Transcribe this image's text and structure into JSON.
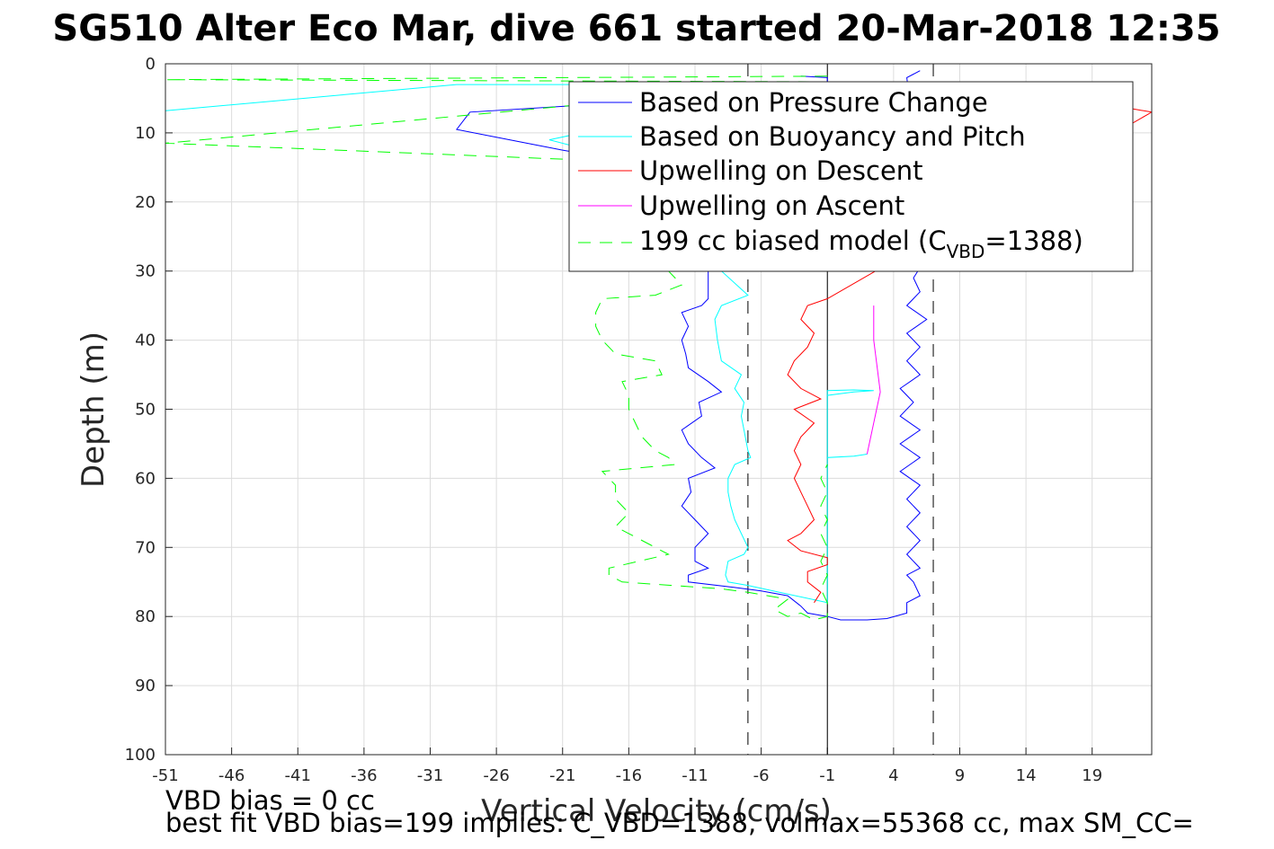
{
  "chart_data": {
    "type": "line",
    "title": "SG510 Alter Eco Mar, dive 661 started 20-Mar-2018 12:35",
    "xlabel": "Vertical Velocity (cm/s)",
    "ylabel": "Depth (m)",
    "xlim": [
      -51,
      23.5
    ],
    "ylim": [
      0,
      100
    ],
    "y_reversed": true,
    "xticks": [
      "-51",
      "-46",
      "-41",
      "-36",
      "-31",
      "-26",
      "-21",
      "-16",
      "-11",
      "-6",
      "-1",
      "4",
      "9",
      "14",
      "19"
    ],
    "yticks": [
      "0",
      "10",
      "20",
      "30",
      "40",
      "50",
      "60",
      "70",
      "80",
      "90",
      "100"
    ],
    "grid": true,
    "legend_location": "top-right",
    "colors": {
      "pressure": "#0000ff",
      "buoyancy": "#00ffff",
      "upwelling_descent": "#ff0000",
      "upwelling_ascent": "#ff00ff",
      "model": "#00ff00",
      "reference": "#000000",
      "grid": "#dcdcdc"
    },
    "legend": [
      {
        "key": "pressure",
        "text": "Based on Pressure Change",
        "style": "solid"
      },
      {
        "key": "buoyancy",
        "text": "Based on Buoyancy and Pitch",
        "style": "solid"
      },
      {
        "key": "upwelling_descent",
        "text": "Upwelling on Descent",
        "style": "solid"
      },
      {
        "key": "upwelling_ascent",
        "text": "Upwelling on Ascent",
        "style": "solid"
      },
      {
        "key": "model",
        "text_main": "199 cc biased model (C",
        "text_sub": "VBD",
        "text_end": "=1388)",
        "style": "dashed"
      }
    ],
    "reference_lines": {
      "solid_x": -1,
      "dashed_x": [
        -7,
        7
      ]
    },
    "series": [
      {
        "key": "pressure",
        "name": "Based on Pressure Change",
        "points": [
          [
            -3,
            1.8
          ],
          [
            -1,
            2
          ],
          [
            -1,
            3
          ],
          [
            -3,
            4
          ],
          [
            -28,
            7
          ],
          [
            -29,
            9.5
          ],
          [
            -25,
            11
          ],
          [
            -21,
            12.5
          ],
          [
            -18,
            13.5
          ],
          [
            -15,
            14
          ],
          [
            -12,
            15
          ],
          [
            -10,
            30
          ],
          [
            -10,
            34
          ],
          [
            -10.5,
            35
          ],
          [
            -12,
            36
          ],
          [
            -11.5,
            38
          ],
          [
            -12,
            40
          ],
          [
            -11.7,
            42
          ],
          [
            -11.5,
            44
          ],
          [
            -10,
            46
          ],
          [
            -9,
            47.5
          ],
          [
            -10.7,
            49
          ],
          [
            -10.5,
            51
          ],
          [
            -12,
            53
          ],
          [
            -11.5,
            55
          ],
          [
            -10.5,
            57
          ],
          [
            -9.5,
            58.5
          ],
          [
            -11.5,
            60
          ],
          [
            -11.3,
            62
          ],
          [
            -12,
            64
          ],
          [
            -11,
            66
          ],
          [
            -10,
            68
          ],
          [
            -11,
            70
          ],
          [
            -11,
            72
          ],
          [
            -10,
            73
          ],
          [
            -11.5,
            74
          ],
          [
            -11.5,
            75
          ],
          [
            -8,
            75.8
          ],
          [
            -6,
            76.3
          ],
          [
            -4,
            77
          ],
          [
            -3,
            78.5
          ],
          [
            -2.5,
            79.5
          ],
          [
            -1,
            80
          ],
          [
            0,
            80.5
          ],
          [
            2,
            80.5
          ],
          [
            3.5,
            80.3
          ],
          [
            5,
            79.5
          ],
          [
            5,
            78
          ],
          [
            6,
            77
          ],
          [
            5.5,
            75
          ],
          [
            5,
            74
          ],
          [
            6,
            73
          ],
          [
            5,
            71
          ],
          [
            6,
            69
          ],
          [
            5,
            67
          ],
          [
            6,
            65
          ],
          [
            5,
            63
          ],
          [
            6,
            61
          ],
          [
            4.5,
            59
          ],
          [
            6,
            57
          ],
          [
            4.5,
            55
          ],
          [
            6,
            53
          ],
          [
            4.5,
            51
          ],
          [
            5.5,
            49
          ],
          [
            4.5,
            47
          ],
          [
            6,
            45
          ],
          [
            5,
            43
          ],
          [
            6,
            41
          ],
          [
            5,
            39
          ],
          [
            6.5,
            37
          ],
          [
            5,
            35
          ],
          [
            6,
            33
          ],
          [
            5.5,
            31
          ],
          [
            6.5,
            28
          ],
          [
            5,
            20
          ],
          [
            5.5,
            10
          ],
          [
            5,
            2
          ],
          [
            6,
            1
          ]
        ]
      },
      {
        "key": "buoyancy",
        "name": "Based on Buoyancy and Pitch",
        "points": [
          [
            -51,
            6.8
          ],
          [
            -29,
            3
          ],
          [
            -3,
            3
          ],
          [
            -3.5,
            3.5
          ],
          [
            -22,
            11
          ],
          [
            -20,
            12
          ],
          [
            -17,
            13.2
          ],
          [
            -15,
            13.8
          ],
          [
            -9,
            20
          ],
          [
            -9,
            30
          ],
          [
            -7,
            33.5
          ],
          [
            -9,
            35
          ],
          [
            -9.5,
            37
          ],
          [
            -9.3,
            40
          ],
          [
            -9,
            43
          ],
          [
            -7.5,
            45
          ],
          [
            -8,
            47
          ],
          [
            -7.3,
            49
          ],
          [
            -7.5,
            51
          ],
          [
            -7.3,
            53
          ],
          [
            -7,
            56
          ],
          [
            -6.8,
            57
          ],
          [
            -8,
            58
          ],
          [
            -8.5,
            60
          ],
          [
            -8.5,
            62
          ],
          [
            -8.3,
            64
          ],
          [
            -8,
            66
          ],
          [
            -7.5,
            68
          ],
          [
            -7,
            70
          ],
          [
            -7.3,
            71
          ],
          [
            -8.5,
            72
          ],
          [
            -8.7,
            74
          ],
          [
            -8.5,
            75
          ],
          [
            -7,
            75.5
          ],
          [
            -1,
            78
          ],
          [
            -1,
            48
          ],
          [
            1,
            47.5
          ],
          [
            2.5,
            47.3
          ],
          [
            1,
            47.2
          ],
          [
            -1,
            47.3
          ],
          [
            -1,
            57
          ],
          [
            1,
            56.8
          ],
          [
            2,
            56.5
          ]
        ]
      },
      {
        "key": "upwelling_descent",
        "name": "Upwelling on Descent",
        "points": [
          [
            22,
            6.5
          ],
          [
            23.5,
            7
          ],
          [
            -1,
            34
          ],
          [
            -2.5,
            35
          ],
          [
            -3,
            37
          ],
          [
            -2,
            39
          ],
          [
            -2.5,
            41
          ],
          [
            -3.5,
            43
          ],
          [
            -4,
            45
          ],
          [
            -3,
            47
          ],
          [
            -1.5,
            48.5
          ],
          [
            -3.5,
            50
          ],
          [
            -2,
            52
          ],
          [
            -3,
            54
          ],
          [
            -3.5,
            56
          ],
          [
            -3,
            58
          ],
          [
            -3.5,
            60
          ],
          [
            -3,
            62
          ],
          [
            -2.5,
            64
          ],
          [
            -2,
            66
          ],
          [
            -3,
            68
          ],
          [
            -4,
            69
          ],
          [
            -3,
            70.5
          ],
          [
            -1,
            71.5
          ],
          [
            -1,
            72.5
          ],
          [
            -2.5,
            73.5
          ],
          [
            -2.5,
            75
          ],
          [
            -1.5,
            76.5
          ],
          [
            -2,
            78
          ]
        ]
      },
      {
        "key": "upwelling_ascent",
        "name": "Upwelling on Ascent",
        "points": [
          [
            2,
            56.5
          ],
          [
            3,
            47.5
          ],
          [
            2.5,
            40
          ],
          [
            2.5,
            35
          ]
        ]
      },
      {
        "key": "model",
        "name": "199 cc biased model (CVBD=1388)",
        "dashed": true,
        "points": [
          [
            -1,
            1.8
          ],
          [
            -51,
            2.3
          ],
          [
            -1,
            2.6
          ],
          [
            -51,
            11.5
          ],
          [
            -12,
            14.5
          ],
          [
            -13,
            30
          ],
          [
            -12,
            32
          ],
          [
            -14,
            33.5
          ],
          [
            -18,
            34
          ],
          [
            -18.5,
            36
          ],
          [
            -18.5,
            38
          ],
          [
            -18,
            40
          ],
          [
            -17,
            42
          ],
          [
            -14,
            43
          ],
          [
            -13.5,
            45
          ],
          [
            -16.5,
            46
          ],
          [
            -16,
            48
          ],
          [
            -16,
            50
          ],
          [
            -15.5,
            52
          ],
          [
            -15,
            54
          ],
          [
            -14,
            56
          ],
          [
            -13,
            57
          ],
          [
            -12.5,
            58
          ],
          [
            -18,
            59
          ],
          [
            -17,
            61
          ],
          [
            -17,
            63
          ],
          [
            -16,
            65
          ],
          [
            -17,
            67
          ],
          [
            -16,
            68
          ],
          [
            -14,
            70
          ],
          [
            -13,
            71
          ],
          [
            -17.5,
            73
          ],
          [
            -17.5,
            74
          ],
          [
            -16.5,
            75
          ],
          [
            -9,
            76
          ],
          [
            -7,
            76.5
          ],
          [
            -4,
            77.5
          ],
          [
            -5,
            79
          ],
          [
            -4,
            80
          ],
          [
            -3,
            79.5
          ],
          [
            -2,
            80.5
          ],
          [
            -1,
            80
          ],
          [
            -1,
            78
          ],
          [
            -1.5,
            76
          ],
          [
            -1,
            74
          ],
          [
            -1.5,
            72
          ],
          [
            -1,
            70
          ],
          [
            -1.5,
            68
          ],
          [
            -1,
            66
          ],
          [
            -1.5,
            64
          ],
          [
            -1,
            62
          ],
          [
            -1.5,
            60
          ],
          [
            -1,
            58
          ]
        ]
      }
    ]
  },
  "footer": {
    "line1": "VBD bias = 0 cc",
    "line2": "best fit VBD bias=199 implies: C_VBD=1388, volmax=55368 cc, max SM_CC="
  }
}
